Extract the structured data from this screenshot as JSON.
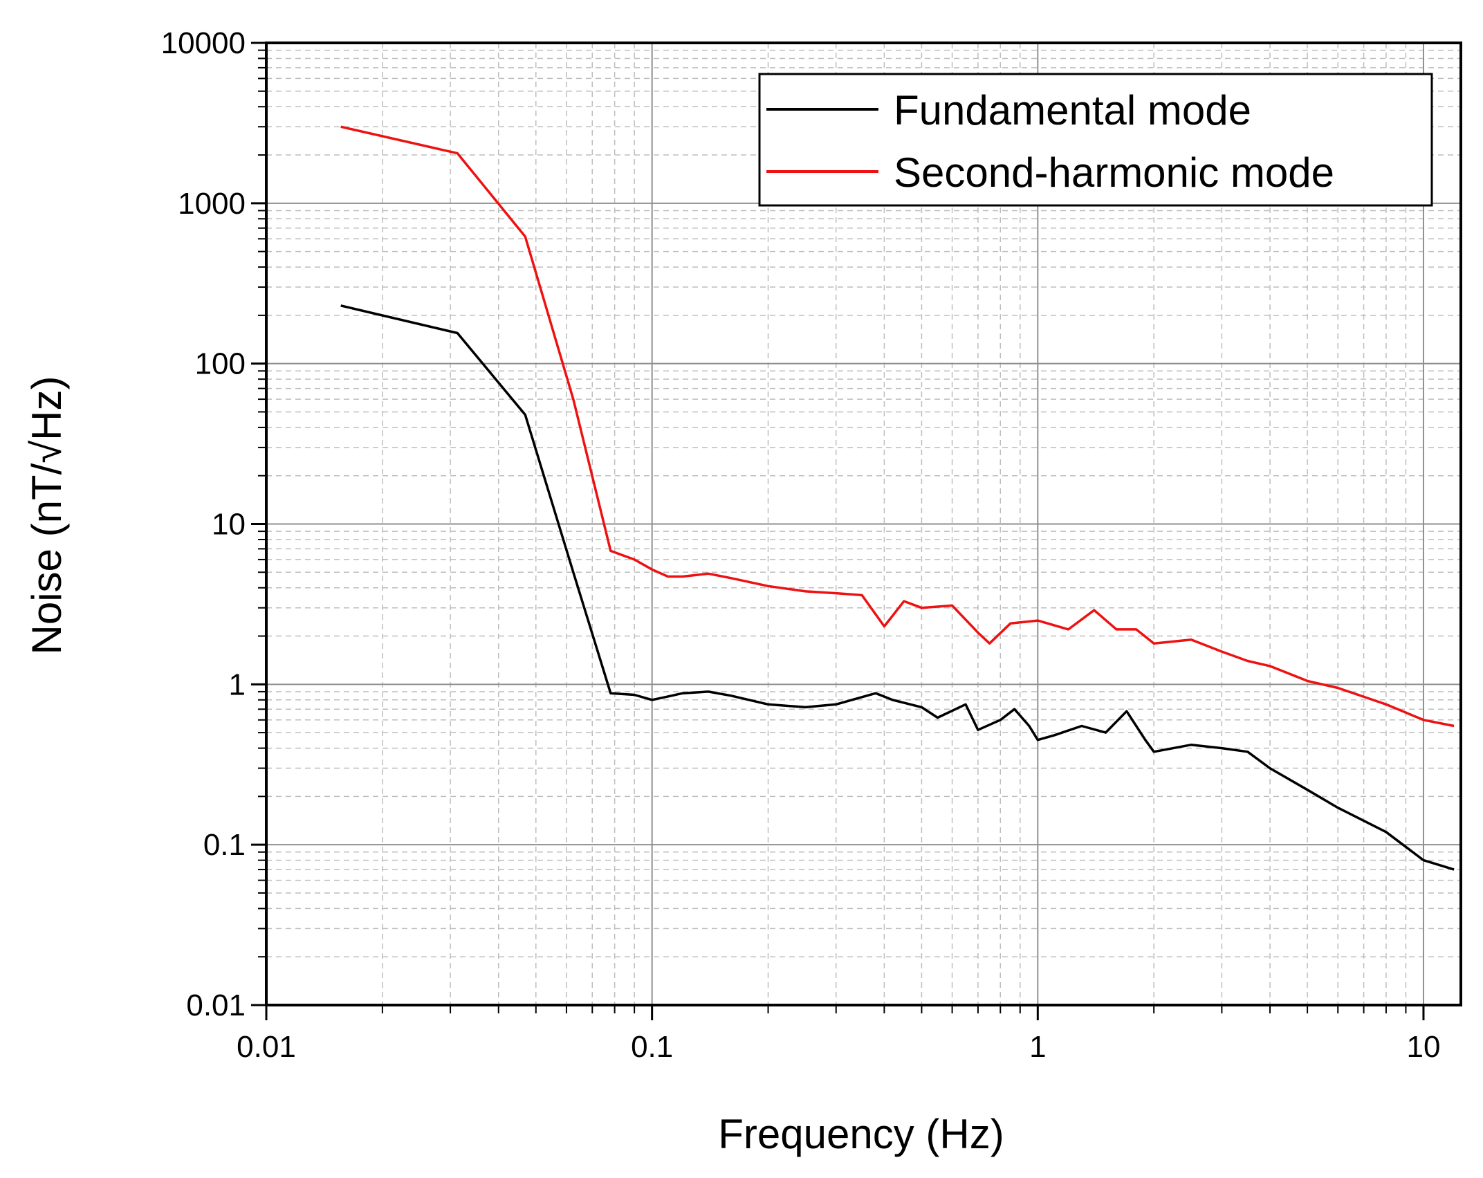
{
  "chart_data": {
    "type": "line",
    "xscale": "log",
    "yscale": "log",
    "xlabel": "Frequency (Hz)",
    "ylabel": "Noise (nT/√Hz)",
    "xlim": [
      0.01,
      12.5
    ],
    "ylim": [
      0.01,
      10000
    ],
    "xticks": [
      0.01,
      0.1,
      1,
      10
    ],
    "xtick_labels": [
      "0.01",
      "0.1",
      "1",
      "10"
    ],
    "yticks": [
      0.01,
      0.1,
      1,
      10,
      100,
      1000,
      10000
    ],
    "ytick_labels": [
      "0.01",
      "0.1",
      "1",
      "10",
      "100",
      "1000",
      "10000"
    ],
    "grid": true,
    "legend_position": "top-right",
    "series": [
      {
        "name": "Fundamental mode",
        "color": "#000000",
        "x": [
          0.0156,
          0.0313,
          0.0469,
          0.0625,
          0.0781,
          0.09,
          0.1,
          0.11,
          0.12,
          0.14,
          0.16,
          0.2,
          0.25,
          0.3,
          0.38,
          0.42,
          0.5,
          0.55,
          0.65,
          0.7,
          0.8,
          0.87,
          0.95,
          1.0,
          1.1,
          1.3,
          1.5,
          1.7,
          1.9,
          2.0,
          2.5,
          3.0,
          3.5,
          4.0,
          5.0,
          6.0,
          8.0,
          10.0,
          12.0
        ],
        "y": [
          230,
          155,
          48,
          5.0,
          0.88,
          0.86,
          0.8,
          0.84,
          0.88,
          0.9,
          0.85,
          0.75,
          0.72,
          0.75,
          0.88,
          0.8,
          0.72,
          0.62,
          0.75,
          0.52,
          0.6,
          0.7,
          0.55,
          0.45,
          0.48,
          0.55,
          0.5,
          0.68,
          0.45,
          0.38,
          0.42,
          0.4,
          0.38,
          0.3,
          0.22,
          0.17,
          0.12,
          0.08,
          0.07
        ]
      },
      {
        "name": "Second-harmonic mode",
        "color": "#ee1111",
        "x": [
          0.0156,
          0.0313,
          0.0469,
          0.0625,
          0.0781,
          0.09,
          0.1,
          0.11,
          0.12,
          0.14,
          0.16,
          0.2,
          0.25,
          0.3,
          0.35,
          0.4,
          0.45,
          0.5,
          0.6,
          0.7,
          0.75,
          0.85,
          1.0,
          1.2,
          1.4,
          1.6,
          1.8,
          2.0,
          2.5,
          3.0,
          3.5,
          4.0,
          5.0,
          6.0,
          8.0,
          10.0,
          12.0
        ],
        "y": [
          3000,
          2050,
          620,
          60,
          6.8,
          6.0,
          5.2,
          4.7,
          4.7,
          4.9,
          4.6,
          4.1,
          3.8,
          3.7,
          3.6,
          2.3,
          3.3,
          3.0,
          3.1,
          2.1,
          1.8,
          2.4,
          2.5,
          2.2,
          2.9,
          2.2,
          2.2,
          1.8,
          1.9,
          1.6,
          1.4,
          1.3,
          1.05,
          0.95,
          0.75,
          0.6,
          0.55
        ]
      }
    ]
  }
}
